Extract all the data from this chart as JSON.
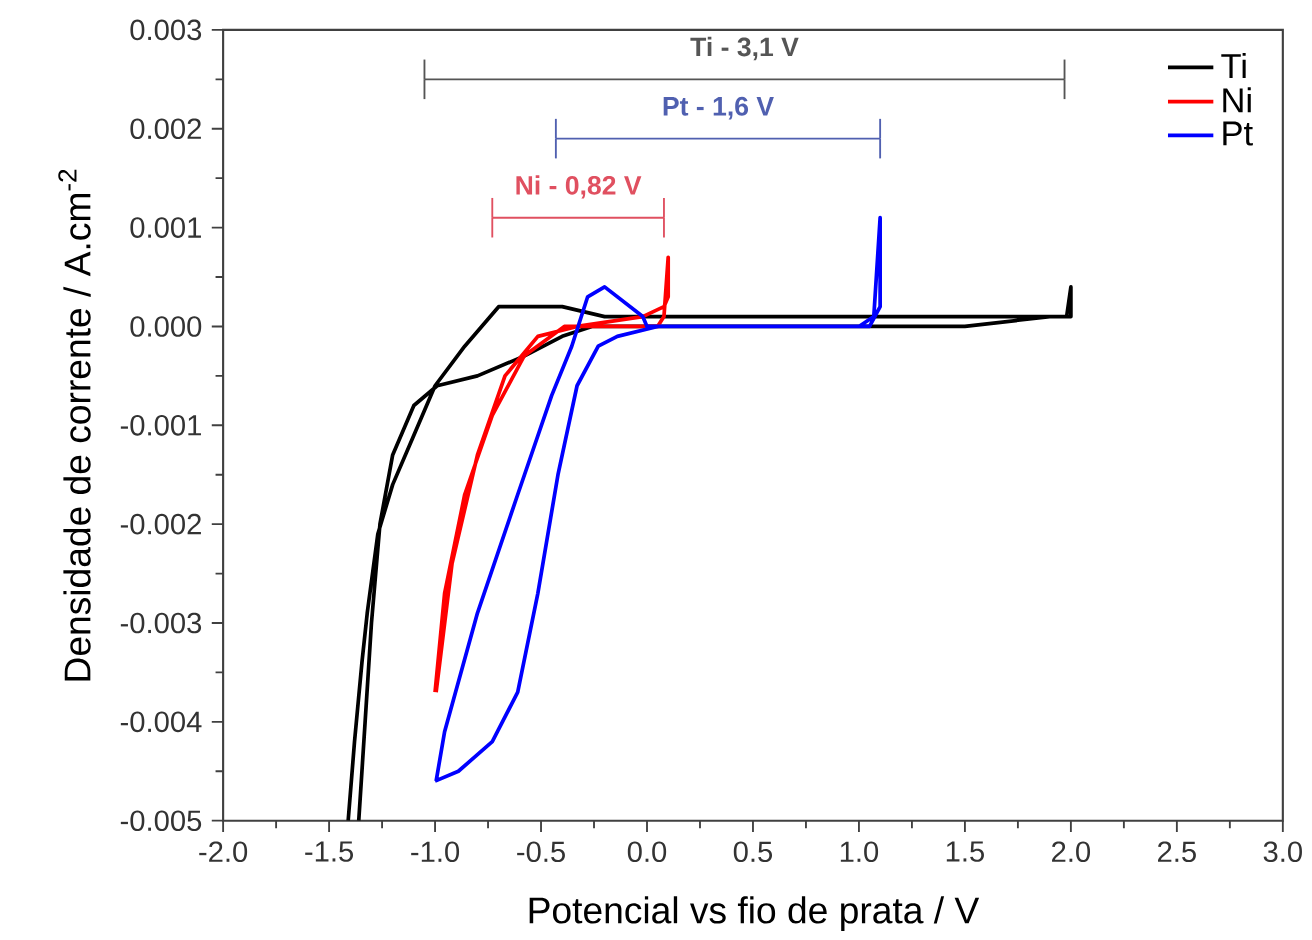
{
  "chart_data": {
    "type": "line",
    "xlabel": "Potencial vs fio de prata / V",
    "ylabel": "Densidade de corrente / A.cm$^{-2}$",
    "xlim": [
      -2.0,
      3.0
    ],
    "ylim": [
      -0.005,
      0.003
    ],
    "xticks": [
      {
        "value": -2,
        "label": "-2.0"
      },
      {
        "value": -1.5,
        "label": "-1.5"
      },
      {
        "value": -1,
        "label": "-1.0"
      },
      {
        "value": -0.5,
        "label": "-0.5"
      },
      {
        "value": 0,
        "label": "0.0"
      },
      {
        "value": 0.5,
        "label": "0.5"
      },
      {
        "value": 1,
        "label": "1.0"
      },
      {
        "value": 1.5,
        "label": "1.5"
      },
      {
        "value": 2,
        "label": "2.0"
      },
      {
        "value": 2.5,
        "label": "2.5"
      },
      {
        "value": 3,
        "label": "3.0"
      }
    ],
    "yticks": [
      {
        "value": -0.005,
        "label": "-0.005"
      },
      {
        "value": -0.004,
        "label": "-0.004"
      },
      {
        "value": -0.003,
        "label": "-0.003"
      },
      {
        "value": -0.002,
        "label": "-0.002"
      },
      {
        "value": -0.001,
        "label": "-0.001"
      },
      {
        "value": 0,
        "label": "0.000"
      },
      {
        "value": 0.001,
        "label": "0.001"
      },
      {
        "value": 0.002,
        "label": "0.002"
      },
      {
        "value": 0.003,
        "label": "0.003"
      }
    ],
    "grid": false,
    "legend": "top right",
    "marker": "none",
    "line_style": "solid",
    "series": [
      {
        "name": "Ti",
        "color": "#000000",
        "x": [
          -1.36,
          -1.33,
          -1.3,
          -1.26,
          -1.2,
          -1.1,
          -0.99,
          -0.8,
          -0.58,
          -0.4,
          -0.26,
          0.0,
          0.5,
          1.0,
          1.5,
          1.9,
          1.98,
          2.0,
          2.0,
          1.5,
          1.0,
          0.5,
          0.0,
          -0.2,
          -0.4,
          -0.54,
          -0.7,
          -0.86,
          -1.0,
          -1.1,
          -1.2,
          -1.27,
          -1.32,
          -1.345,
          -1.38,
          -1.41
        ],
        "values": [
          -0.005,
          -0.004,
          -0.003,
          -0.002,
          -0.0013,
          -0.0008,
          -0.0006,
          -0.0005,
          -0.0003,
          -0.0001,
          0.0,
          0.0,
          0.0,
          0.0,
          0.0,
          0.0001,
          0.0001,
          0.0004,
          0.0001,
          0.0001,
          0.0001,
          0.0001,
          0.0001,
          0.0001,
          0.0002,
          0.0002,
          0.0002,
          -0.0002,
          -0.0006,
          -0.0011,
          -0.0016,
          -0.0021,
          -0.0029,
          -0.0034,
          -0.0042,
          -0.005
        ]
      },
      {
        "name": "Ni",
        "color": "#ff0000",
        "x": [
          -1.0,
          -0.955,
          -0.86,
          -0.73,
          -0.58,
          -0.39,
          -0.2,
          0.05,
          0.08,
          0.1,
          0.1,
          0.08,
          -0.02,
          -0.33,
          -0.515,
          -0.67,
          -0.8,
          -0.92,
          -0.995
        ],
        "values": [
          -0.0037,
          -0.0027,
          -0.0017,
          -0.0009,
          -0.0003,
          0.0,
          0.0,
          0.0,
          0.0001,
          0.0007,
          0.0003,
          0.0002,
          0.0001,
          0.0,
          -0.0001,
          -0.0005,
          -0.0013,
          -0.0024,
          -0.0037
        ]
      },
      {
        "name": "Pt",
        "color": "#0000ff",
        "x": [
          -1.0,
          -0.89,
          -0.73,
          -0.61,
          -0.515,
          -0.42,
          -0.33,
          -0.23,
          -0.14,
          0.05,
          0.5,
          1.0,
          1.07,
          1.1,
          1.1,
          1.05,
          0.5,
          0.0,
          -0.02,
          -0.2,
          -0.28,
          -0.355,
          -0.45,
          -0.61,
          -0.8,
          -0.955,
          -0.995
        ],
        "values": [
          -0.0046,
          -0.0045,
          -0.0042,
          -0.0037,
          -0.0027,
          -0.0015,
          -0.0006,
          -0.0002,
          -0.0001,
          0.0,
          0.0,
          0.0,
          0.0001,
          0.0011,
          0.0002,
          0.0,
          0.0,
          0.0,
          0.0001,
          0.0004,
          0.0003,
          -0.0002,
          -0.0007,
          -0.0017,
          -0.0029,
          -0.0041,
          -0.0046
        ]
      },
      {
        "color": "#555555",
        "x": [
          -1.05,
          1.97
        ],
        "values": [
          0.0025,
          0.0025
        ],
        "errors": [
          0.0002,
          0.0002
        ]
      },
      {
        "color": "#5060b0",
        "x": [
          -0.43,
          1.1
        ],
        "values": [
          0.0019,
          0.0019
        ],
        "errors": [
          0.0002,
          0.0002
        ]
      },
      {
        "color": "#e05060",
        "x": [
          -0.73,
          0.08
        ],
        "values": [
          0.0011,
          0.0011
        ],
        "errors": [
          0.0002,
          0.0002
        ]
      }
    ],
    "annotations": [
      "**Ti - 3,1 V**",
      "**Pt - 1,6 V**",
      "**Ni - 0,82 V**"
    ]
  }
}
